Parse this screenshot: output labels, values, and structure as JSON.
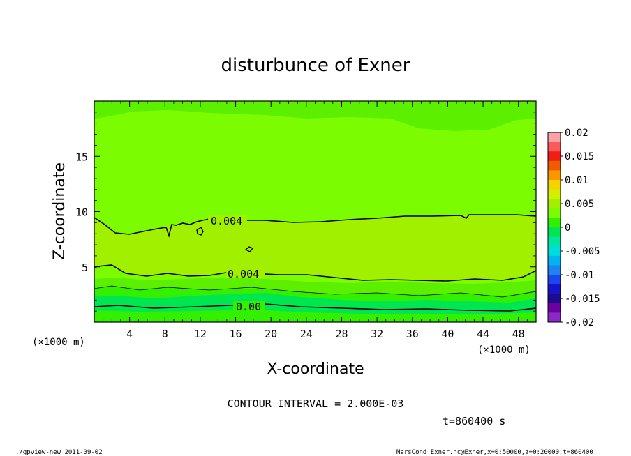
{
  "chart_data": {
    "type": "contour",
    "title": "disturbunce of Exner",
    "xlabel": "X-coordinate",
    "ylabel": "Z-coordinate",
    "x_unit": "(×1000 m)",
    "z_unit": "(×1000 m)",
    "xlim": [
      0,
      50
    ],
    "zlim": [
      0,
      20
    ],
    "x_ticks": [
      "4",
      "8",
      "12",
      "16",
      "20",
      "24",
      "28",
      "32",
      "36",
      "40",
      "44",
      "48"
    ],
    "z_ticks": [
      "5",
      "10",
      "15"
    ],
    "contour_labels": [
      "0.004",
      "0.004",
      "0.00"
    ],
    "contour_interval_text": "CONTOUR INTERVAL = 2.000E-03",
    "time_text": "t=860400 s",
    "colorbar": {
      "labels": [
        "0.02",
        "0.015",
        "0.01",
        "0.005",
        "0",
        "-0.005",
        "-0.01",
        "-0.015",
        "-0.02"
      ],
      "colors": [
        "#fca0a8",
        "#fc5a5a",
        "#f01e14",
        "#f05a00",
        "#fa9600",
        "#f6d200",
        "#d2f000",
        "#a0f000",
        "#7cfc00",
        "#32f000",
        "#00e650",
        "#00e6a0",
        "#00dcdc",
        "#00b4f0",
        "#1e82f0",
        "#1e46f0",
        "#1414c8",
        "#1e0a8c",
        "#6e00a0",
        "#8c28c8"
      ]
    },
    "field_levels": {
      "upper_region": "0 to 0.002",
      "middle_band": "0.004 to 0.006",
      "lower_layers": "-0.002 to 0.004"
    }
  },
  "footer": {
    "left": "./gpview-new  2011-09-02",
    "right": "MarsCond_Exner.nc@Exner,x=0:50000,z=0:20000,t=860400"
  }
}
